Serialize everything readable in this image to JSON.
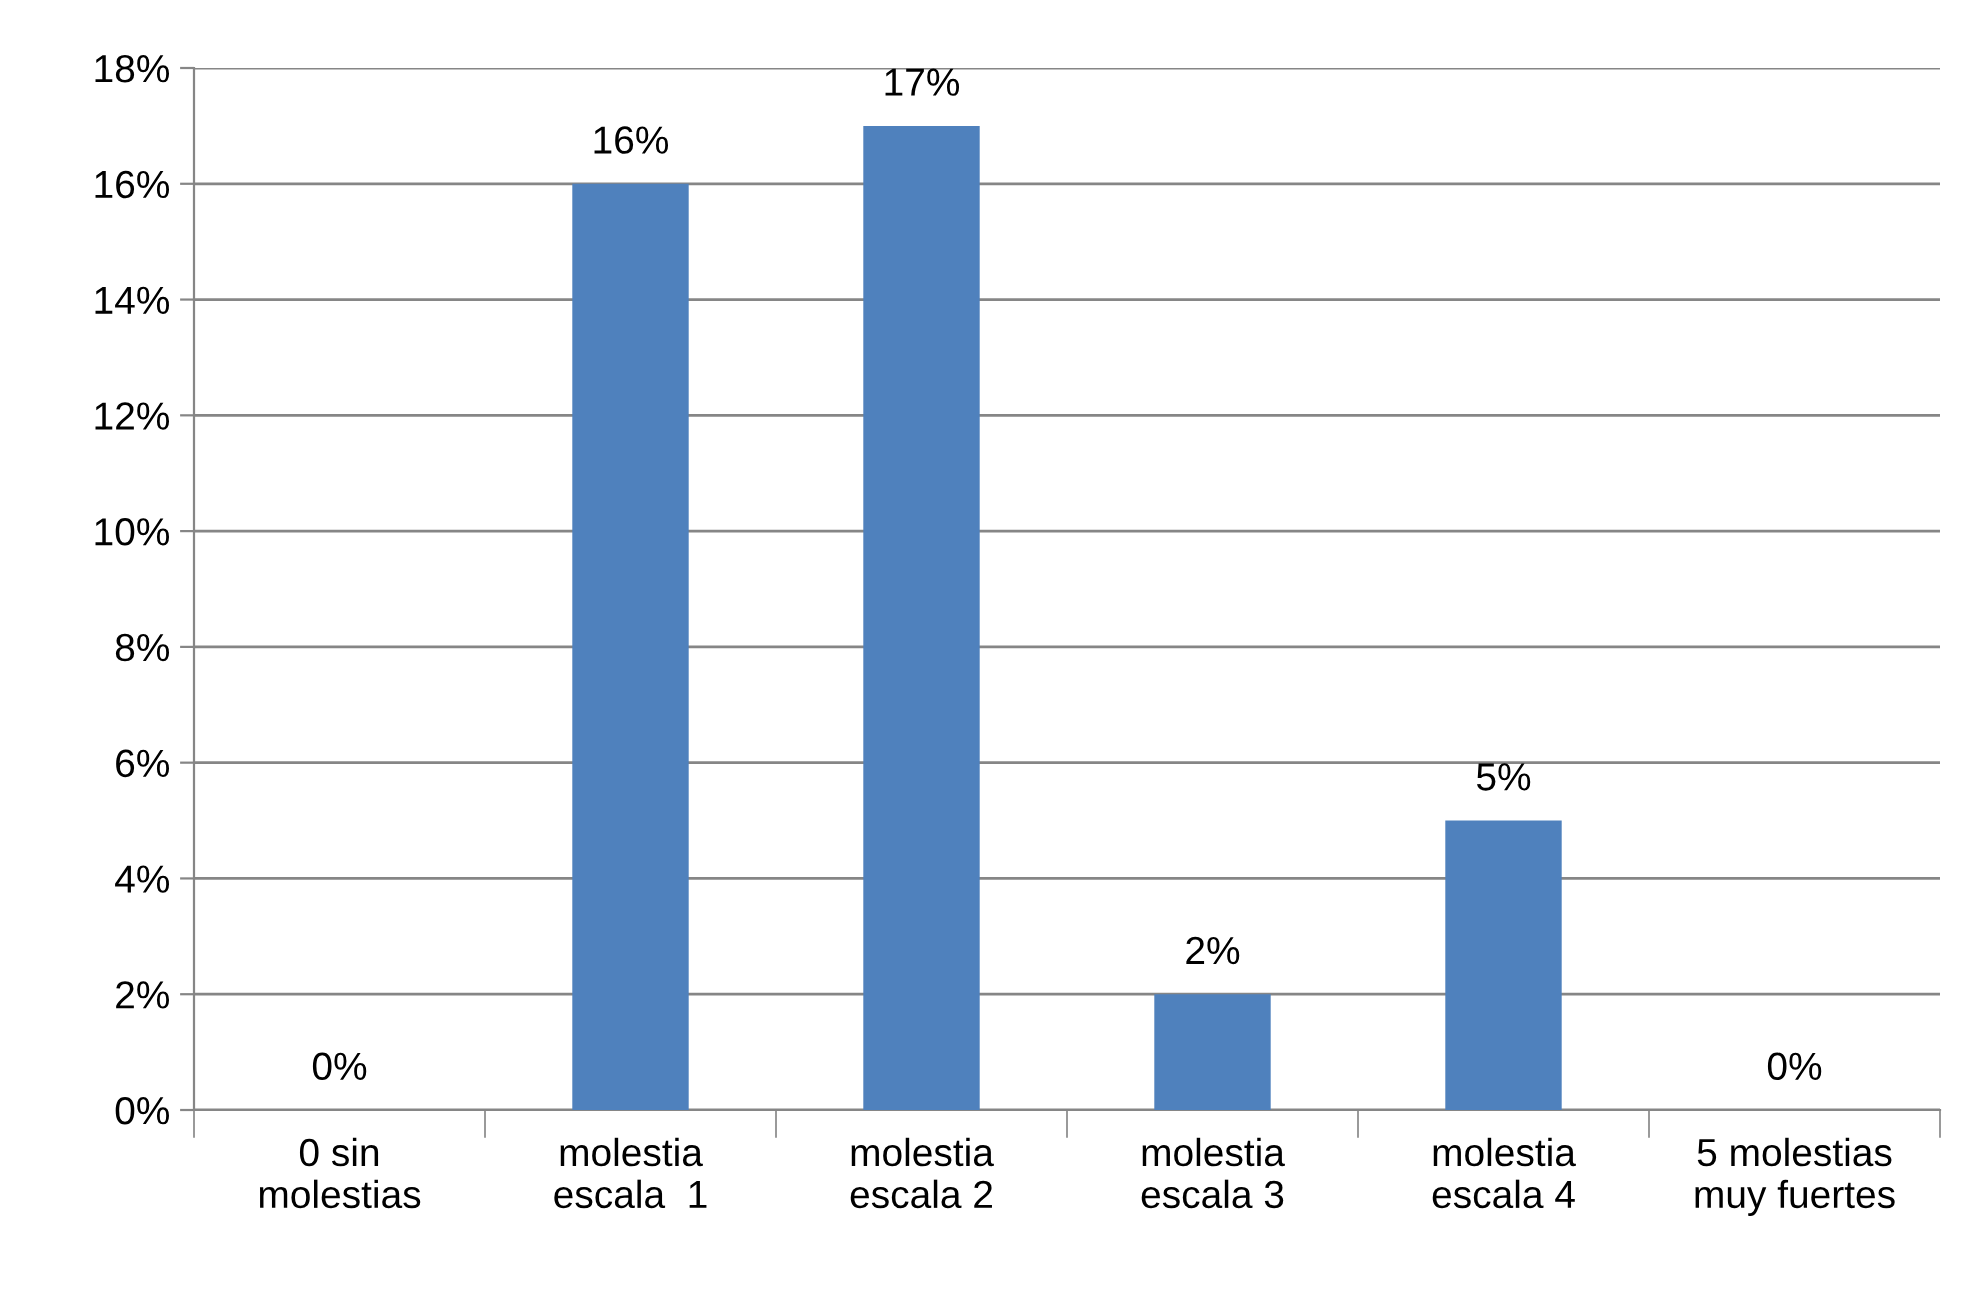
{
  "chart_data": {
    "type": "bar",
    "categories": [
      "0 sin\nmolestias",
      "molestia\nescala  1",
      "molestia\nescala 2",
      "molestia\nescala 3",
      "molestia\nescala 4",
      "5 molestias\nmuy fuertes"
    ],
    "values": [
      0,
      16,
      17,
      2,
      5,
      0
    ],
    "value_labels": [
      "0%",
      "16%",
      "17%",
      "2%",
      "5%",
      "0%"
    ],
    "color": "#4f81bd",
    "ylim": [
      0,
      18
    ],
    "yticks": [
      {
        "value": 0,
        "label": "0%"
      },
      {
        "value": 2,
        "label": "2%"
      },
      {
        "value": 4,
        "label": "4%"
      },
      {
        "value": 6,
        "label": "6%"
      },
      {
        "value": 8,
        "label": "8%"
      },
      {
        "value": 10,
        "label": "10%"
      },
      {
        "value": 12,
        "label": "12%"
      },
      {
        "value": 14,
        "label": "14%"
      },
      {
        "value": 16,
        "label": "16%"
      },
      {
        "value": 18,
        "label": "18%"
      }
    ],
    "grid": "y"
  }
}
